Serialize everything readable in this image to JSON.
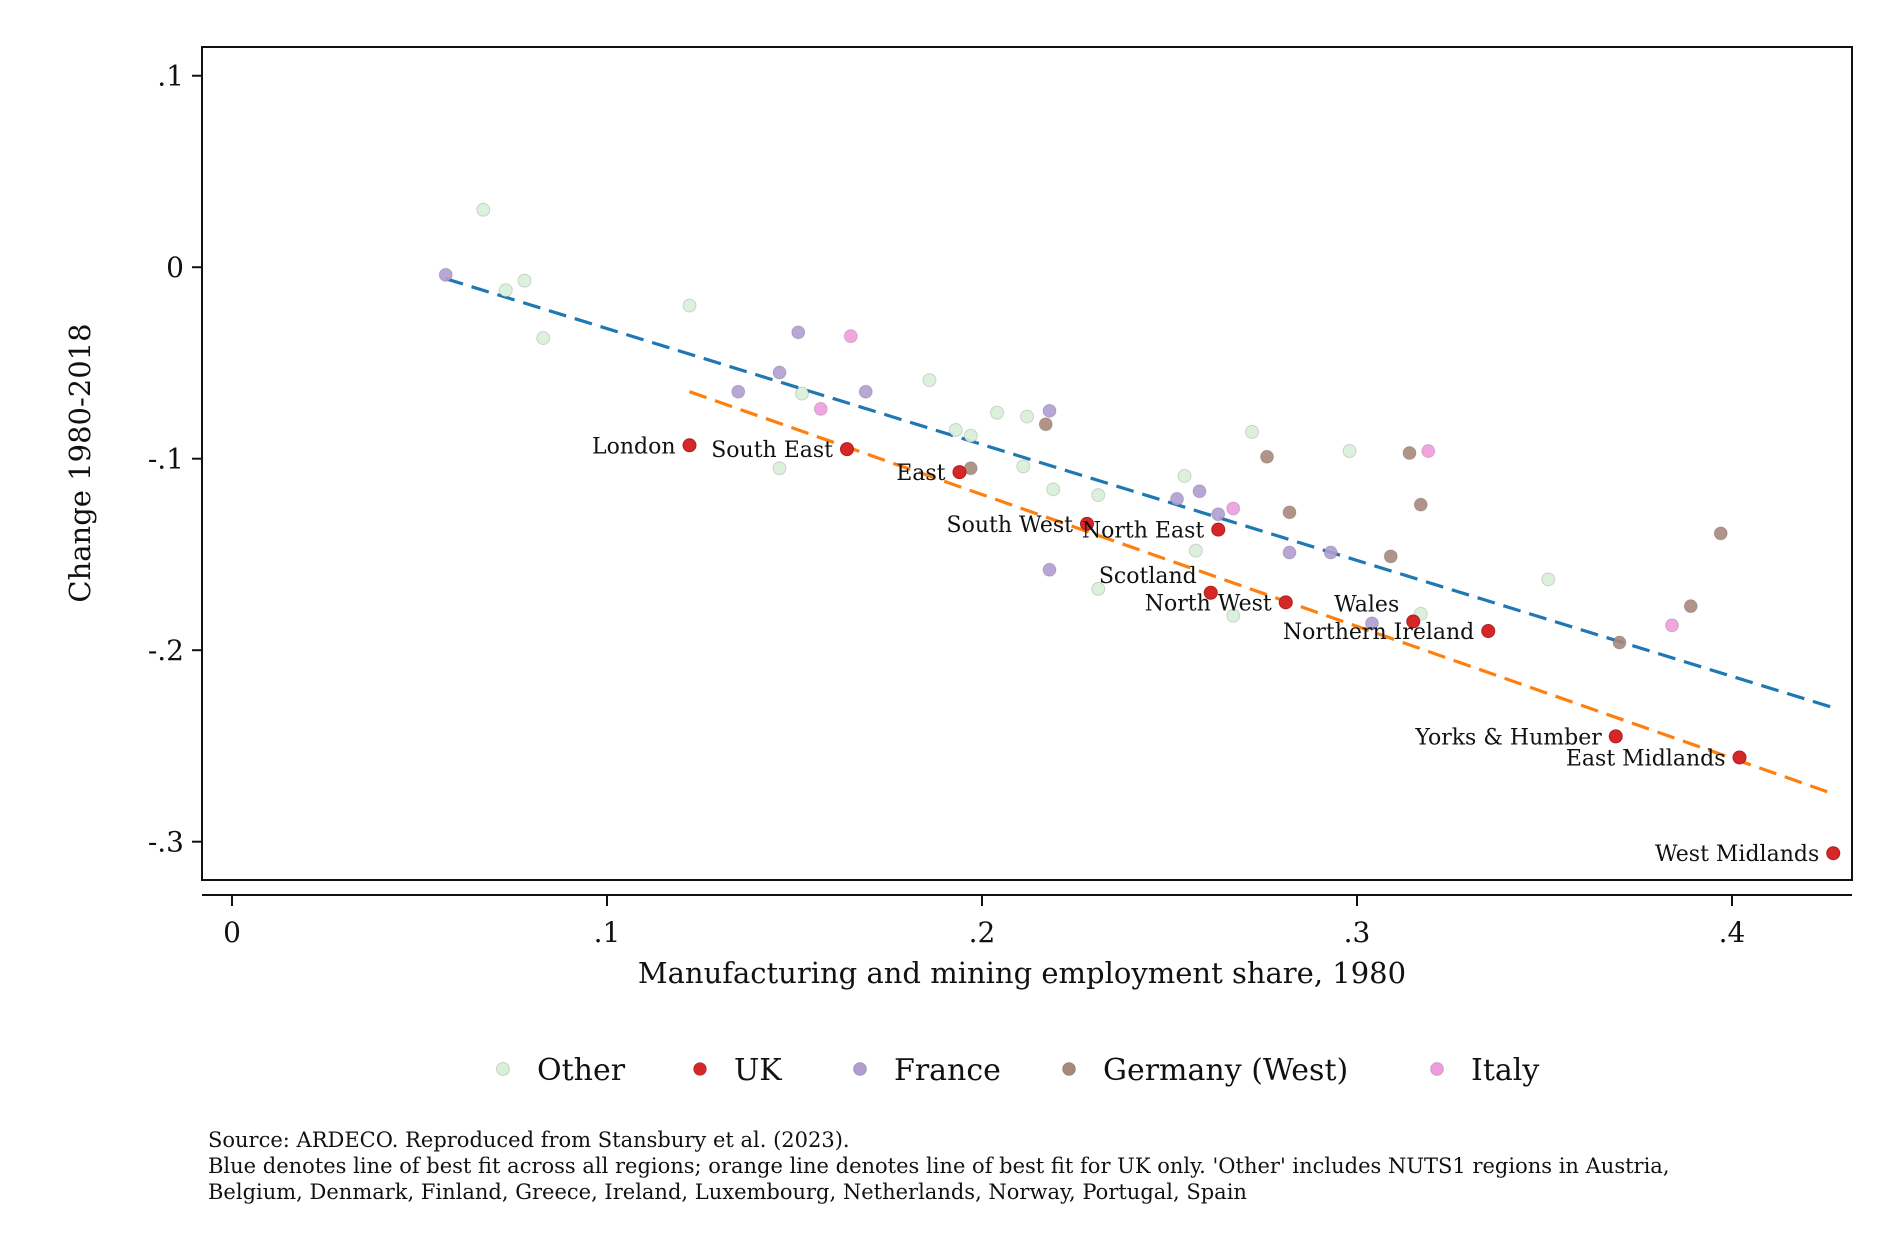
{
  "chart_data": {
    "type": "scatter",
    "title": "",
    "xlabel": "Manufacturing and mining employment share, 1980",
    "ylabel": "Change 1980-2018",
    "xlim": [
      -0.008,
      0.432
    ],
    "ylim": [
      -0.32,
      0.115
    ],
    "x_ticks": [
      {
        "v": 0,
        "label": "0"
      },
      {
        "v": 0.1,
        "label": ".1"
      },
      {
        "v": 0.2,
        "label": ".2"
      },
      {
        "v": 0.3,
        "label": ".3"
      },
      {
        "v": 0.4,
        "label": ".4"
      }
    ],
    "y_ticks": [
      {
        "v": 0.1,
        "label": ".1"
      },
      {
        "v": 0,
        "label": "0"
      },
      {
        "v": -0.1,
        "label": "-.1"
      },
      {
        "v": -0.2,
        "label": "-.2"
      },
      {
        "v": -0.3,
        "label": "-.3"
      }
    ],
    "grid": false,
    "legend_position": "bottom",
    "series": [
      {
        "name": "Other",
        "color": "#d8f0d8",
        "points": [
          {
            "x": 0.067,
            "y": 0.03
          },
          {
            "x": 0.073,
            "y": -0.012
          },
          {
            "x": 0.078,
            "y": -0.007
          },
          {
            "x": 0.083,
            "y": -0.037
          },
          {
            "x": 0.122,
            "y": -0.02
          },
          {
            "x": 0.146,
            "y": -0.105
          },
          {
            "x": 0.152,
            "y": -0.066
          },
          {
            "x": 0.186,
            "y": -0.059
          },
          {
            "x": 0.193,
            "y": -0.085
          },
          {
            "x": 0.197,
            "y": -0.088
          },
          {
            "x": 0.204,
            "y": -0.076
          },
          {
            "x": 0.211,
            "y": -0.104
          },
          {
            "x": 0.212,
            "y": -0.078
          },
          {
            "x": 0.219,
            "y": -0.116
          },
          {
            "x": 0.231,
            "y": -0.119
          },
          {
            "x": 0.231,
            "y": -0.168
          },
          {
            "x": 0.254,
            "y": -0.109
          },
          {
            "x": 0.257,
            "y": -0.148
          },
          {
            "x": 0.267,
            "y": -0.182
          },
          {
            "x": 0.272,
            "y": -0.086
          },
          {
            "x": 0.298,
            "y": -0.096
          },
          {
            "x": 0.317,
            "y": -0.181
          },
          {
            "x": 0.351,
            "y": -0.163
          }
        ]
      },
      {
        "name": "UK",
        "color": "#d62728",
        "points": [
          {
            "x": 0.122,
            "y": -0.093,
            "label": "London"
          },
          {
            "x": 0.164,
            "y": -0.095,
            "label": "South East"
          },
          {
            "x": 0.194,
            "y": -0.107,
            "label": "East"
          },
          {
            "x": 0.228,
            "y": -0.134,
            "label": "South West"
          },
          {
            "x": 0.263,
            "y": -0.137,
            "label": "North East"
          },
          {
            "x": 0.261,
            "y": -0.17,
            "label": "Scotland"
          },
          {
            "x": 0.281,
            "y": -0.175,
            "label": "North West"
          },
          {
            "x": 0.315,
            "y": -0.185,
            "label": "Wales"
          },
          {
            "x": 0.335,
            "y": -0.19,
            "label": "Northern Ireland"
          },
          {
            "x": 0.369,
            "y": -0.245,
            "label": "Yorks & Humber"
          },
          {
            "x": 0.402,
            "y": -0.256,
            "label": "East Midlands"
          },
          {
            "x": 0.427,
            "y": -0.306,
            "label": "West Midlands"
          }
        ]
      },
      {
        "name": "France",
        "color": "#b09cd0",
        "points": [
          {
            "x": 0.057,
            "y": -0.004
          },
          {
            "x": 0.135,
            "y": -0.065
          },
          {
            "x": 0.146,
            "y": -0.055
          },
          {
            "x": 0.151,
            "y": -0.034
          },
          {
            "x": 0.169,
            "y": -0.065
          },
          {
            "x": 0.218,
            "y": -0.075
          },
          {
            "x": 0.218,
            "y": -0.158
          },
          {
            "x": 0.252,
            "y": -0.121
          },
          {
            "x": 0.258,
            "y": -0.117
          },
          {
            "x": 0.263,
            "y": -0.129
          },
          {
            "x": 0.282,
            "y": -0.149
          },
          {
            "x": 0.293,
            "y": -0.149
          },
          {
            "x": 0.304,
            "y": -0.186
          }
        ]
      },
      {
        "name": "Germany (West)",
        "color": "#a8887c",
        "points": [
          {
            "x": 0.197,
            "y": -0.105
          },
          {
            "x": 0.217,
            "y": -0.082
          },
          {
            "x": 0.276,
            "y": -0.099
          },
          {
            "x": 0.282,
            "y": -0.128
          },
          {
            "x": 0.309,
            "y": -0.151
          },
          {
            "x": 0.314,
            "y": -0.097
          },
          {
            "x": 0.317,
            "y": -0.124
          },
          {
            "x": 0.37,
            "y": -0.196
          },
          {
            "x": 0.389,
            "y": -0.177
          },
          {
            "x": 0.397,
            "y": -0.139
          }
        ]
      },
      {
        "name": "Italy",
        "color": "#ee9cdc",
        "points": [
          {
            "x": 0.157,
            "y": -0.074
          },
          {
            "x": 0.165,
            "y": -0.036
          },
          {
            "x": 0.267,
            "y": -0.126
          },
          {
            "x": 0.319,
            "y": -0.096
          },
          {
            "x": 0.384,
            "y": -0.187
          }
        ]
      }
    ],
    "fit_lines": [
      {
        "color": "#1f77b4",
        "from": [
          0.057,
          -0.006
        ],
        "to": [
          0.427,
          -0.23
        ]
      },
      {
        "color": "#ff7f0e",
        "from": [
          0.122,
          -0.065
        ],
        "to": [
          0.427,
          -0.275
        ]
      }
    ]
  },
  "notes": [
    "Source: ARDECO. Reproduced from Stansbury et al. (2023).",
    "Blue denotes line of best fit across all regions; orange line denotes line of best fit for UK only. 'Other' includes NUTS1 regions in Austria,",
    "Belgium, Denmark, Finland, Greece, Ireland, Luxembourg, Netherlands, Norway, Portugal, Spain"
  ]
}
